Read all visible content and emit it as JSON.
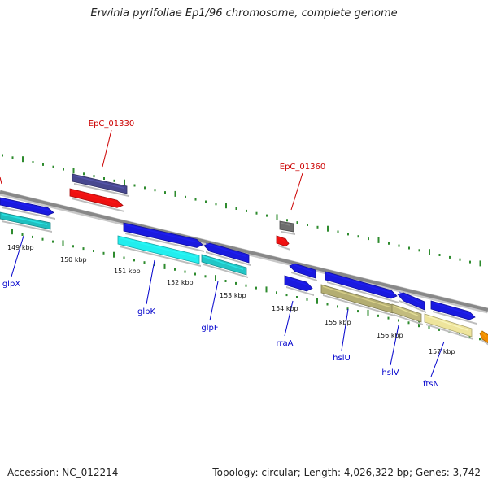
{
  "title": "Erwinia pyrifoliae Ep1/96 chromosome, complete genome",
  "footer": {
    "accession": "Accession: NC_012214",
    "summary": "Topology: circular; Length: 4,026,322 bp; Genes: 3,742"
  },
  "colors": {
    "backbone": "#808080",
    "gc_ticks": "#2e8b2e",
    "label_red": "#cc0000",
    "label_blue": "#0000cc"
  },
  "ruler": {
    "unit": "kbp",
    "ticks": [
      "149 kbp",
      "150 kbp",
      "151 kbp",
      "152 kbp",
      "153 kbp",
      "154 kbp",
      "155 kbp",
      "156 kbp",
      "157 kbp"
    ]
  },
  "genes": [
    {
      "name": "EpC_01330",
      "color": "#cc0000"
    },
    {
      "name": "EpC_01360",
      "color": "#cc0000"
    },
    {
      "name": "glpX",
      "color": "#0000cc"
    },
    {
      "name": "glpK",
      "color": "#0000cc"
    },
    {
      "name": "glpF",
      "color": "#0000cc"
    },
    {
      "name": "rraA",
      "color": "#0000cc"
    },
    {
      "name": "hslU",
      "color": "#0000cc"
    },
    {
      "name": "hslV",
      "color": "#0000cc"
    },
    {
      "name": "ftsN",
      "color": "#0000cc"
    }
  ],
  "features": [
    {
      "name": "glpX-forward-cds",
      "color": "#1a1adf"
    },
    {
      "name": "glpX-rna",
      "color": "#1fbfbf"
    },
    {
      "name": "EpC_01330-cog",
      "color": "#48488f"
    },
    {
      "name": "EpC_01330-cds",
      "color": "#ee1111"
    },
    {
      "name": "glpK-cds",
      "color": "#1a1adf"
    },
    {
      "name": "glpK-rna",
      "color": "#22eeee"
    },
    {
      "name": "glpF-cds",
      "color": "#1a1adf"
    },
    {
      "name": "glpF-rna",
      "color": "#22c6c6"
    },
    {
      "name": "EpC_01360-cog",
      "color": "#6e6e6e"
    },
    {
      "name": "EpC_01360-cds",
      "color": "#ee1111"
    },
    {
      "name": "rraA-cds-upper",
      "color": "#1a1adf"
    },
    {
      "name": "rraA-cds-lower",
      "color": "#1a1adf"
    },
    {
      "name": "hslU-cds",
      "color": "#1a1adf"
    },
    {
      "name": "hslU-cog",
      "color": "#b3ad72"
    },
    {
      "name": "hslV-cds",
      "color": "#1a1adf"
    },
    {
      "name": "hslV-cog",
      "color": "#c2bb7e"
    },
    {
      "name": "ftsN-cds",
      "color": "#1a1adf"
    },
    {
      "name": "ftsN-cog",
      "color": "#eee49c"
    },
    {
      "name": "edge-orange-feature",
      "color": "#f08c00"
    }
  ]
}
